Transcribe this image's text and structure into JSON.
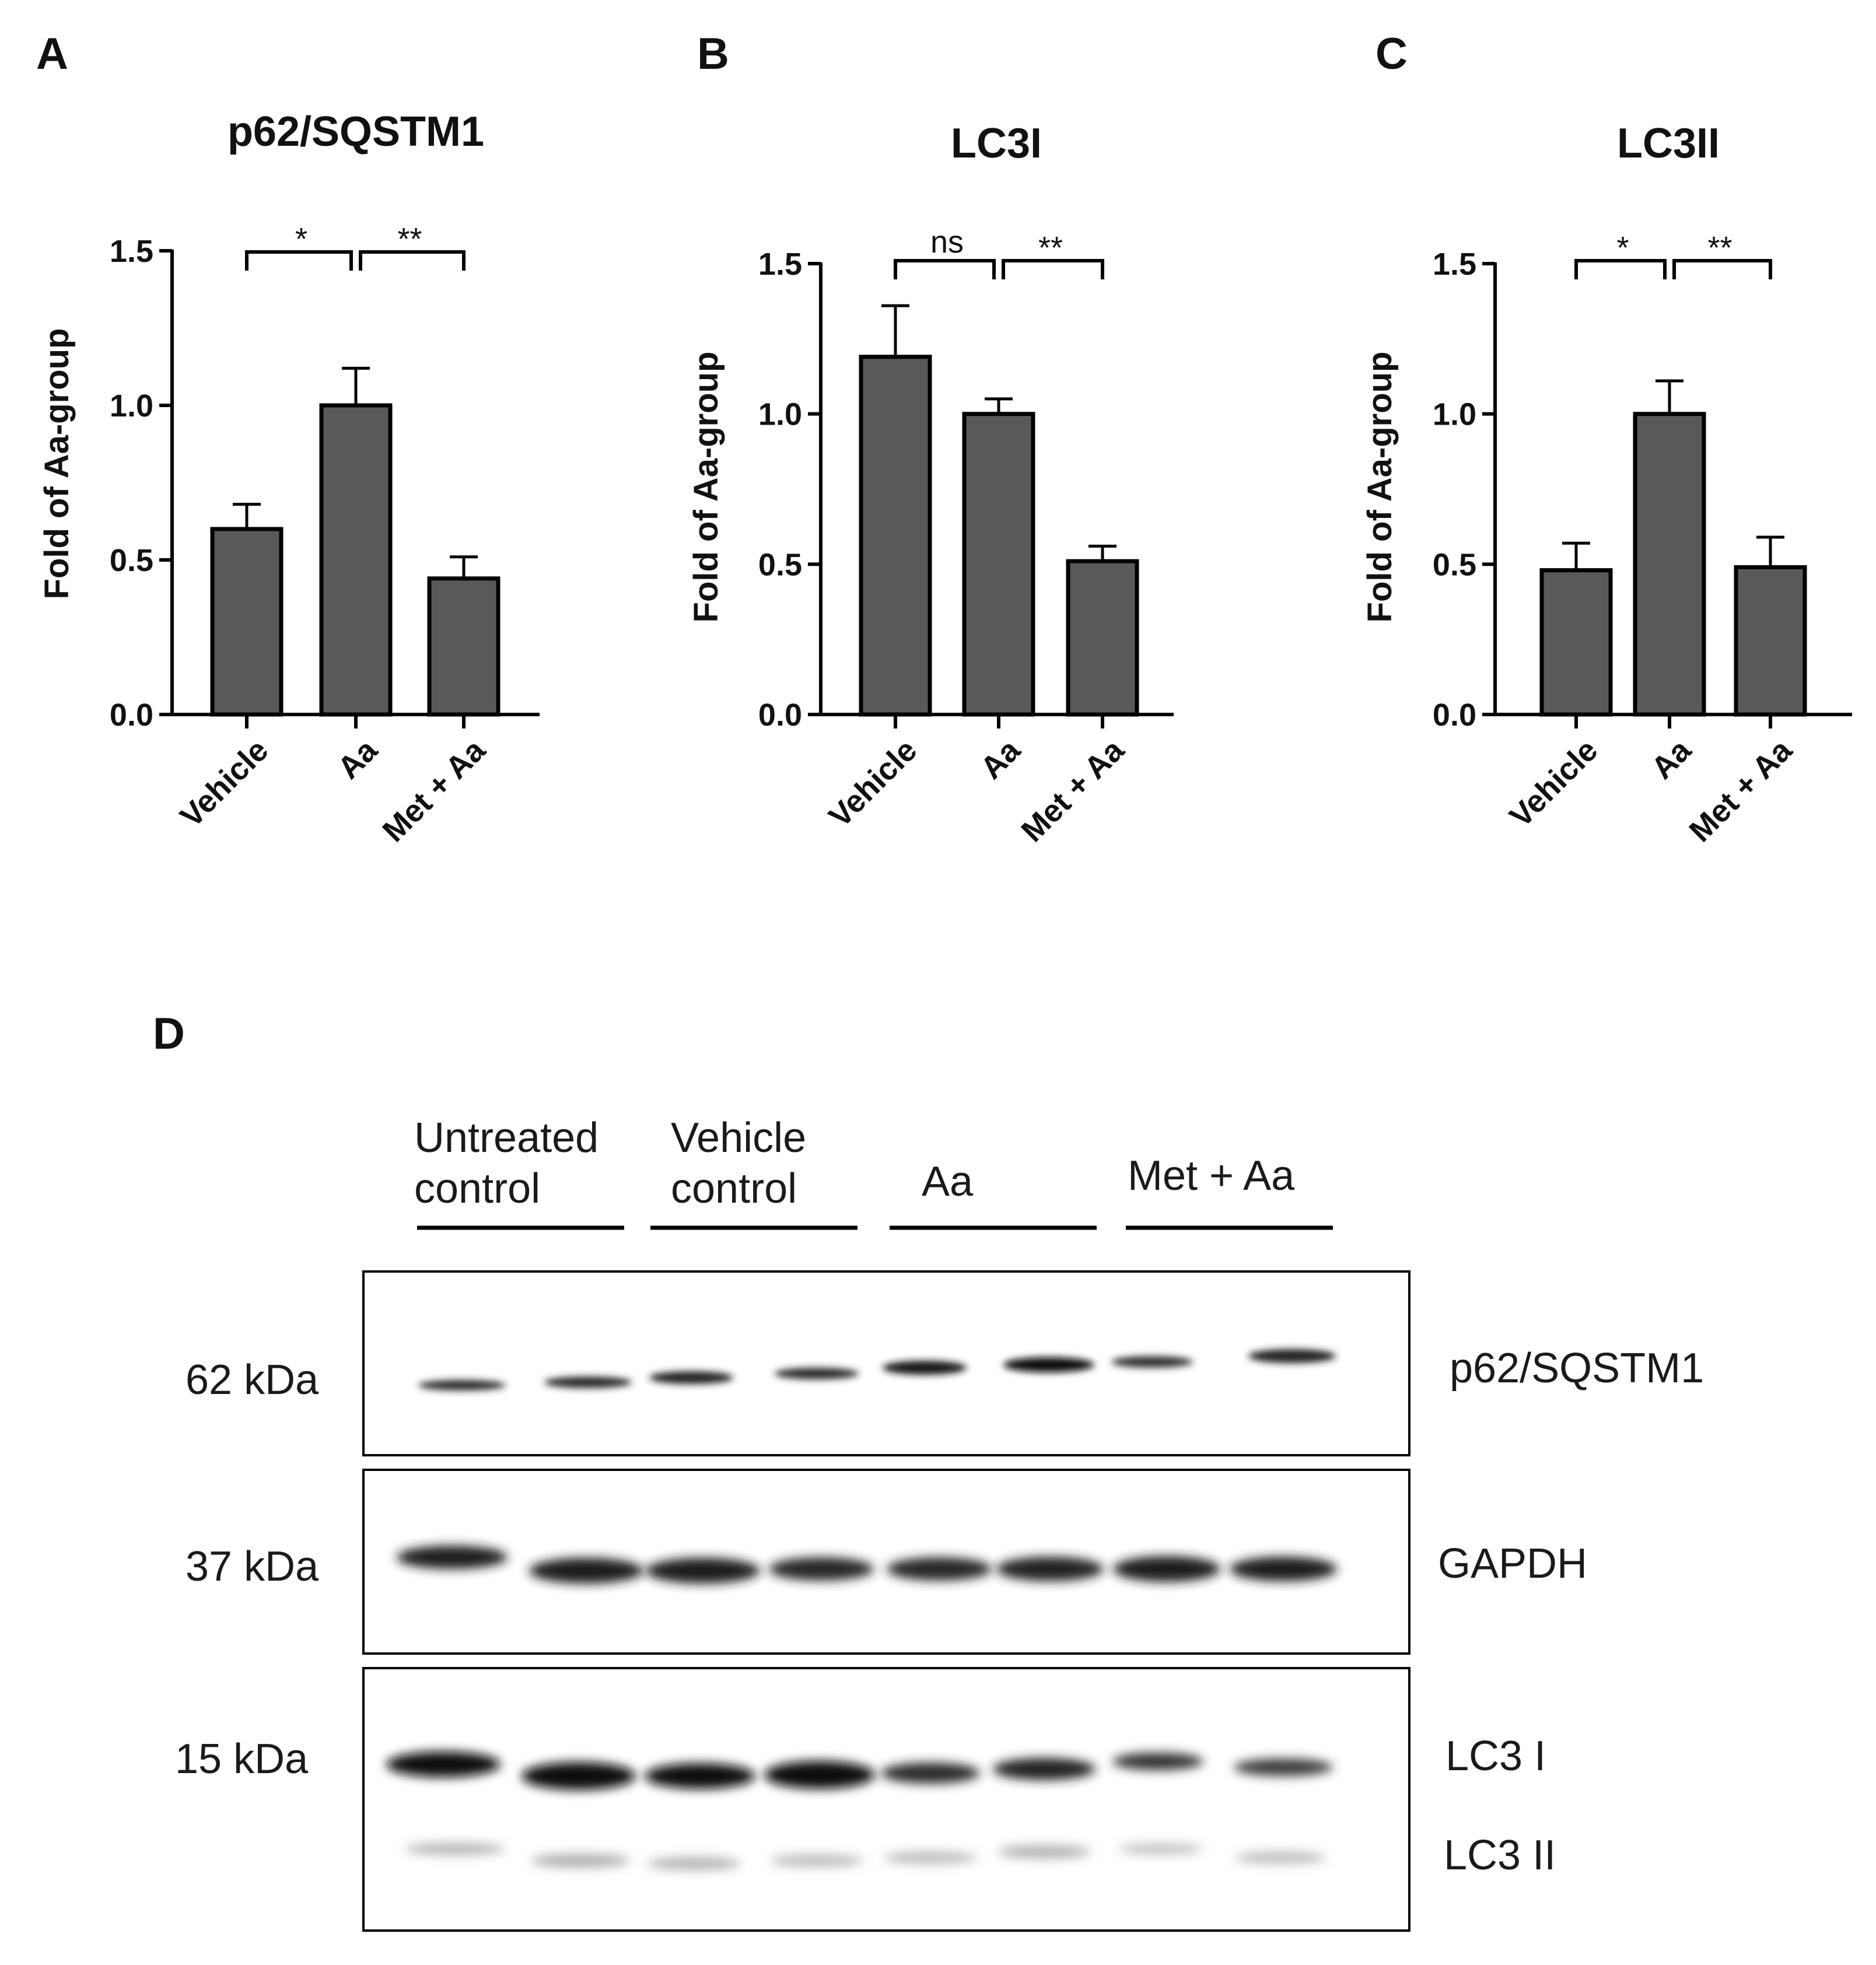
{
  "panels": [
    {
      "letter": "A",
      "chart_data": {
        "type": "bar",
        "title": "p62/SQSTM1",
        "ylabel": "Fold of Aa-group",
        "xlabel": "",
        "categories": [
          "Vehicle",
          "Aa",
          "Met + Aa"
        ],
        "values": [
          0.6,
          1.0,
          0.44
        ],
        "errors": [
          0.08,
          0.12,
          0.07
        ],
        "ylim": [
          0,
          1.5
        ],
        "yticks": [
          "0.0",
          "0.5",
          "1.0",
          "1.5"
        ],
        "significance": [
          {
            "from": 0,
            "to": 1,
            "label": "*"
          },
          {
            "from": 1,
            "to": 2,
            "label": "**"
          }
        ]
      }
    },
    {
      "letter": "B",
      "chart_data": {
        "type": "bar",
        "title": "LC3I",
        "ylabel": "Fold of Aa-group",
        "xlabel": "",
        "categories": [
          "Vehicle",
          "Aa",
          "Met + Aa"
        ],
        "values": [
          1.19,
          1.0,
          0.51
        ],
        "errors": [
          0.17,
          0.05,
          0.05
        ],
        "ylim": [
          0,
          1.5
        ],
        "yticks": [
          "0.0",
          "0.5",
          "1.0",
          "1.5"
        ],
        "significance": [
          {
            "from": 0,
            "to": 1,
            "label": "ns"
          },
          {
            "from": 1,
            "to": 2,
            "label": "**"
          }
        ]
      }
    },
    {
      "letter": "C",
      "chart_data": {
        "type": "bar",
        "title": "LC3II",
        "ylabel": "Fold of Aa-group",
        "xlabel": "",
        "categories": [
          "Vehicle",
          "Aa",
          "Met + Aa"
        ],
        "values": [
          0.48,
          1.0,
          0.49
        ],
        "errors": [
          0.09,
          0.11,
          0.1
        ],
        "ylim": [
          0,
          1.5
        ],
        "yticks": [
          "0.0",
          "0.5",
          "1.0",
          "1.5"
        ],
        "significance": [
          {
            "from": 0,
            "to": 1,
            "label": "*"
          },
          {
            "from": 1,
            "to": 2,
            "label": "**"
          }
        ]
      }
    }
  ],
  "blot": {
    "letter": "D",
    "groups": [
      {
        "line1": "Untreated",
        "line2": "control"
      },
      {
        "line1": "Vehicle",
        "line2": "control"
      },
      {
        "line1": "Aa",
        "line2": ""
      },
      {
        "line1": "Met + Aa",
        "line2": ""
      }
    ],
    "markers": [
      "62 kDa",
      "37 kDa",
      "15 kDa"
    ],
    "proteins": [
      "p62/SQSTM1",
      "GAPDH",
      "LC3 I",
      "LC3 II"
    ]
  }
}
